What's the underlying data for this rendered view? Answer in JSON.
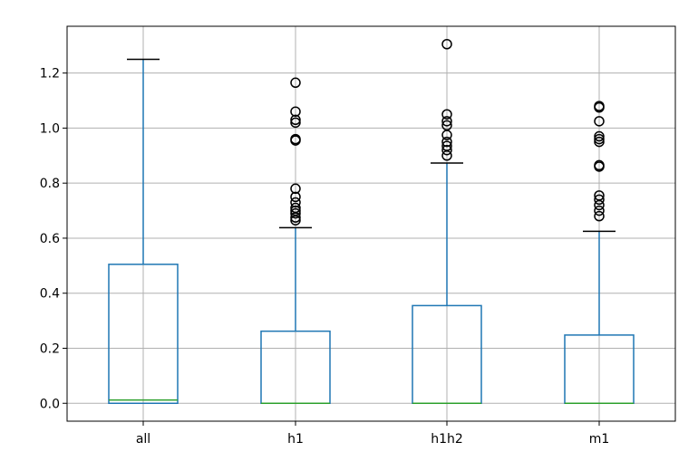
{
  "chart_data": {
    "type": "box",
    "title": "",
    "xlabel": "",
    "ylabel": "",
    "grid": true,
    "ylim": [
      -0.065,
      1.37
    ],
    "yticks": [
      0.0,
      0.2,
      0.4,
      0.6,
      0.8,
      1.0,
      1.2
    ],
    "ytick_labels": [
      "0.0",
      "0.2",
      "0.4",
      "0.6",
      "0.8",
      "1.0",
      "1.2"
    ],
    "categories": [
      "all",
      "h1",
      "h1h2",
      "m1"
    ],
    "boxes": [
      {
        "label": "all",
        "whisker_low": 0.0,
        "q1": 0.0,
        "median": 0.012,
        "q3": 0.505,
        "whisker_high": 1.25,
        "fliers": []
      },
      {
        "label": "h1",
        "whisker_low": 0.0,
        "q1": 0.0,
        "median": 0.0,
        "q3": 0.262,
        "whisker_high": 0.638,
        "fliers": [
          0.665,
          0.675,
          0.69,
          0.7,
          0.71,
          0.73,
          0.75,
          0.78,
          0.955,
          0.96,
          1.02,
          1.03,
          1.06,
          1.165
        ]
      },
      {
        "label": "h1h2",
        "whisker_low": 0.0,
        "q1": 0.0,
        "median": 0.0,
        "q3": 0.355,
        "whisker_high": 0.873,
        "fliers": [
          0.9,
          0.92,
          0.935,
          0.95,
          0.975,
          1.01,
          1.025,
          1.05,
          1.305
        ]
      },
      {
        "label": "m1",
        "whisker_low": 0.0,
        "q1": 0.0,
        "median": 0.0,
        "q3": 0.248,
        "whisker_high": 0.625,
        "fliers": [
          0.68,
          0.7,
          0.72,
          0.74,
          0.755,
          0.86,
          0.865,
          0.95,
          0.96,
          0.97,
          1.025,
          1.075,
          1.08
        ]
      }
    ],
    "colors": {
      "box": "#1f77b4",
      "median": "#2ca02c",
      "cap": "#000000",
      "flier": "#000000",
      "grid": "#b0b0b0"
    }
  }
}
